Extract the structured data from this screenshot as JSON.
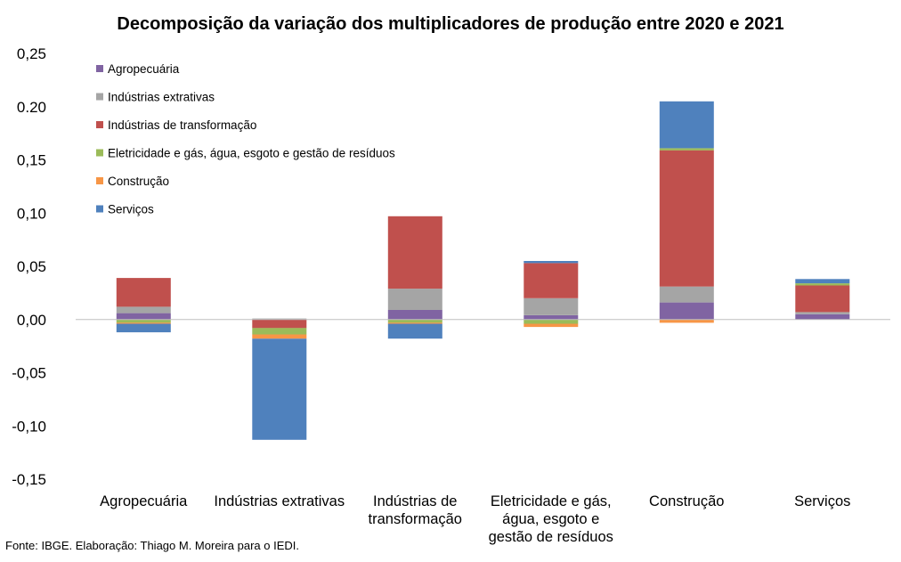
{
  "chart_data": {
    "type": "bar",
    "stacked": true,
    "title": "Decomposição da variação dos multiplicadores de produção entre 2020 e 2021",
    "xlabel": "",
    "ylabel": "",
    "ylim": [
      -0.15,
      0.25
    ],
    "yticks": [
      "0,25",
      "0.20",
      "0,15",
      "0,10",
      "0,05",
      "0,00",
      "-0,05",
      "-0,10",
      "-0,15"
    ],
    "ytick_values": [
      0.25,
      0.2,
      0.15,
      0.1,
      0.05,
      0.0,
      -0.05,
      -0.1,
      -0.15
    ],
    "categories": [
      [
        "Agropecuária"
      ],
      [
        "Indústrias extrativas"
      ],
      [
        "Indústrias de",
        "transformação"
      ],
      [
        "Eletricidade e gás,",
        "água, esgoto e",
        "gestão de resíduos"
      ],
      [
        "Construção"
      ],
      [
        "Serviços"
      ]
    ],
    "series": [
      {
        "name": "Agropecuária",
        "color": "#8064A2",
        "values": [
          0.006,
          0.0,
          0.009,
          0.004,
          0.016,
          0.005
        ]
      },
      {
        "name": "Indústrias extrativas",
        "color": "#A5A5A5",
        "values": [
          0.006,
          0.001,
          0.02,
          0.016,
          0.015,
          0.002
        ]
      },
      {
        "name": "Indústrias de transformação",
        "color": "#C0504D",
        "values": [
          0.027,
          -0.008,
          0.068,
          0.033,
          0.128,
          0.025
        ]
      },
      {
        "name": "Eletricidade e gás, água, esgoto e gestão de resíduos",
        "color": "#9BBB59",
        "values": [
          -0.003,
          -0.006,
          -0.003,
          -0.004,
          0.002,
          0.002
        ]
      },
      {
        "name": "Construção",
        "color": "#F79646",
        "values": [
          -0.001,
          -0.004,
          -0.001,
          -0.003,
          -0.003,
          0.0
        ]
      },
      {
        "name": "Serviços",
        "color": "#4F81BD",
        "values": [
          -0.008,
          -0.095,
          -0.014,
          0.002,
          0.044,
          0.004
        ]
      }
    ],
    "legend_position": "top-left",
    "grid": false,
    "zero_line": true
  },
  "source": "Fonte: IBGE. Elaboração: Thiago M. Moreira para o IEDI."
}
